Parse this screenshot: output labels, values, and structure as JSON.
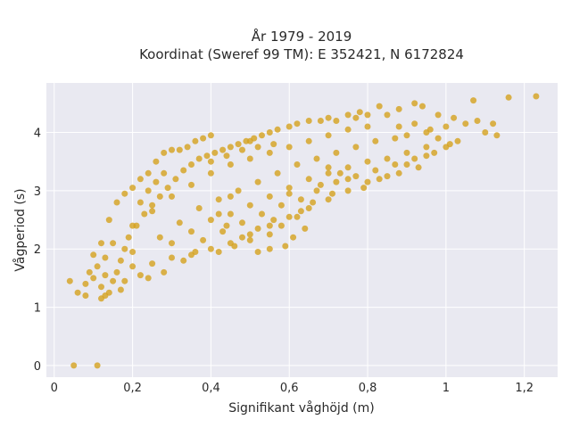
{
  "chart_data": {
    "type": "scatter",
    "title_line1": "År 1979 - 2019",
    "title_line2": "Koordinat (Sweref 99 TM): E 352421, N 6172824",
    "xlabel": "Signifikant våghöjd (m)",
    "ylabel": "Vågperiod (s)",
    "xlim": [
      -0.02,
      1.285
    ],
    "ylim": [
      -0.2,
      4.85
    ],
    "x_ticks": [
      0,
      0.2,
      0.4,
      0.6,
      0.8,
      1,
      1.2
    ],
    "x_tick_labels": [
      "0",
      "0,2",
      "0,4",
      "0,6",
      "0,8",
      "1",
      "1,2"
    ],
    "y_ticks": [
      0,
      1,
      2,
      3,
      4
    ],
    "y_tick_labels": [
      "0",
      "1",
      "2",
      "3",
      "4"
    ],
    "grid": true,
    "marker_color": "#D4A11E",
    "plot_background": "#E9E9F1",
    "grid_color": "#FFFFFF",
    "points": [
      [
        0.05,
        0.0
      ],
      [
        0.11,
        0.0
      ],
      [
        0.04,
        1.45
      ],
      [
        0.06,
        1.25
      ],
      [
        0.08,
        1.2
      ],
      [
        0.12,
        1.15
      ],
      [
        0.13,
        1.55
      ],
      [
        0.1,
        1.9
      ],
      [
        0.12,
        2.1
      ],
      [
        0.14,
        2.5
      ],
      [
        0.16,
        2.8
      ],
      [
        0.18,
        2.95
      ],
      [
        0.2,
        3.05
      ],
      [
        0.22,
        3.2
      ],
      [
        0.24,
        3.3
      ],
      [
        0.26,
        3.5
      ],
      [
        0.28,
        3.65
      ],
      [
        0.3,
        3.7
      ],
      [
        0.32,
        3.7
      ],
      [
        0.34,
        3.75
      ],
      [
        0.36,
        3.85
      ],
      [
        0.38,
        3.9
      ],
      [
        0.4,
        3.95
      ],
      [
        0.5,
        3.85
      ],
      [
        0.55,
        4.0
      ],
      [
        0.6,
        4.1
      ],
      [
        0.65,
        4.2
      ],
      [
        0.7,
        4.25
      ],
      [
        0.75,
        4.3
      ],
      [
        0.78,
        4.35
      ],
      [
        0.8,
        4.3
      ],
      [
        0.83,
        4.45
      ],
      [
        0.88,
        4.4
      ],
      [
        0.92,
        4.5
      ],
      [
        0.94,
        4.45
      ],
      [
        0.98,
        4.3
      ],
      [
        1.0,
        4.1
      ],
      [
        1.02,
        4.25
      ],
      [
        1.05,
        4.15
      ],
      [
        1.08,
        4.2
      ],
      [
        1.1,
        4.0
      ],
      [
        1.12,
        4.15
      ],
      [
        1.13,
        3.95
      ],
      [
        1.16,
        4.6
      ],
      [
        1.23,
        4.62
      ],
      [
        1.07,
        4.55
      ],
      [
        0.95,
        4.0
      ],
      [
        0.9,
        3.95
      ],
      [
        0.2,
        1.7
      ],
      [
        0.25,
        1.75
      ],
      [
        0.3,
        1.85
      ],
      [
        0.35,
        1.9
      ],
      [
        0.4,
        2.0
      ],
      [
        0.45,
        2.1
      ],
      [
        0.5,
        2.25
      ],
      [
        0.55,
        2.4
      ],
      [
        0.6,
        2.55
      ],
      [
        0.65,
        2.7
      ],
      [
        0.7,
        2.85
      ],
      [
        0.75,
        3.0
      ],
      [
        0.8,
        3.15
      ],
      [
        0.85,
        3.25
      ],
      [
        0.9,
        3.45
      ],
      [
        0.95,
        3.6
      ],
      [
        1.0,
        3.75
      ],
      [
        0.52,
        1.95
      ],
      [
        0.5,
        2.15
      ],
      [
        0.55,
        2.25
      ],
      [
        0.58,
        2.4
      ],
      [
        0.62,
        2.55
      ],
      [
        0.6,
        2.95
      ],
      [
        0.68,
        3.1
      ],
      [
        0.7,
        3.4
      ],
      [
        0.73,
        3.3
      ],
      [
        0.75,
        3.2
      ],
      [
        0.42,
        2.6
      ],
      [
        0.45,
        2.9
      ],
      [
        0.08,
        1.4
      ],
      [
        0.09,
        1.6
      ],
      [
        0.1,
        1.5
      ],
      [
        0.11,
        1.7
      ],
      [
        0.12,
        1.35
      ],
      [
        0.14,
        1.25
      ],
      [
        0.15,
        1.45
      ],
      [
        0.16,
        1.6
      ],
      [
        0.17,
        1.8
      ],
      [
        0.18,
        2.0
      ],
      [
        0.19,
        2.2
      ],
      [
        0.21,
        2.4
      ],
      [
        0.23,
        2.6
      ],
      [
        0.25,
        2.75
      ],
      [
        0.27,
        2.9
      ],
      [
        0.29,
        3.05
      ],
      [
        0.31,
        3.2
      ],
      [
        0.33,
        3.35
      ],
      [
        0.35,
        3.45
      ],
      [
        0.37,
        3.55
      ],
      [
        0.39,
        3.6
      ],
      [
        0.41,
        3.65
      ],
      [
        0.43,
        3.7
      ],
      [
        0.45,
        3.75
      ],
      [
        0.47,
        3.8
      ],
      [
        0.49,
        3.85
      ],
      [
        0.51,
        3.9
      ],
      [
        0.53,
        3.95
      ],
      [
        0.57,
        4.05
      ],
      [
        0.62,
        4.15
      ],
      [
        0.68,
        4.2
      ],
      [
        0.72,
        4.2
      ],
      [
        0.77,
        4.25
      ],
      [
        0.85,
        4.3
      ],
      [
        0.88,
        4.1
      ],
      [
        0.92,
        4.15
      ],
      [
        0.96,
        4.05
      ],
      [
        0.98,
        3.9
      ],
      [
        0.65,
        3.85
      ],
      [
        0.7,
        3.95
      ],
      [
        0.75,
        4.05
      ],
      [
        0.8,
        4.1
      ],
      [
        0.6,
        3.75
      ],
      [
        0.55,
        3.65
      ],
      [
        0.5,
        3.55
      ],
      [
        0.45,
        3.45
      ],
      [
        0.4,
        3.3
      ],
      [
        0.35,
        3.1
      ],
      [
        0.3,
        2.9
      ],
      [
        0.25,
        2.65
      ],
      [
        0.2,
        2.4
      ],
      [
        0.15,
        2.1
      ],
      [
        0.13,
        1.85
      ],
      [
        0.3,
        2.1
      ],
      [
        0.35,
        2.3
      ],
      [
        0.4,
        2.5
      ],
      [
        0.45,
        2.6
      ],
      [
        0.5,
        2.75
      ],
      [
        0.55,
        2.9
      ],
      [
        0.6,
        3.05
      ],
      [
        0.65,
        3.2
      ],
      [
        0.7,
        3.3
      ],
      [
        0.75,
        3.4
      ],
      [
        0.8,
        3.5
      ],
      [
        0.85,
        3.55
      ],
      [
        0.9,
        3.65
      ],
      [
        0.95,
        3.75
      ],
      [
        0.36,
        1.95
      ],
      [
        0.28,
        1.6
      ],
      [
        0.22,
        1.55
      ],
      [
        0.18,
        1.45
      ],
      [
        0.24,
        1.5
      ],
      [
        0.33,
        1.8
      ],
      [
        0.38,
        2.15
      ],
      [
        0.43,
        2.3
      ],
      [
        0.48,
        2.45
      ],
      [
        0.53,
        2.6
      ],
      [
        0.58,
        2.75
      ],
      [
        0.63,
        2.85
      ],
      [
        0.67,
        3.0
      ],
      [
        0.72,
        3.15
      ],
      [
        0.77,
        3.25
      ],
      [
        0.82,
        3.35
      ],
      [
        0.87,
        3.45
      ],
      [
        0.92,
        3.55
      ],
      [
        0.97,
        3.65
      ],
      [
        1.01,
        3.8
      ],
      [
        1.03,
        3.85
      ],
      [
        0.27,
        2.2
      ],
      [
        0.32,
        2.45
      ],
      [
        0.37,
        2.7
      ],
      [
        0.42,
        2.85
      ],
      [
        0.47,
        3.0
      ],
      [
        0.52,
        3.15
      ],
      [
        0.57,
        3.3
      ],
      [
        0.62,
        3.45
      ],
      [
        0.67,
        3.55
      ],
      [
        0.72,
        3.65
      ],
      [
        0.77,
        3.75
      ],
      [
        0.82,
        3.85
      ],
      [
        0.87,
        3.9
      ],
      [
        0.2,
        1.95
      ],
      [
        0.17,
        1.3
      ],
      [
        0.13,
        1.2
      ],
      [
        0.22,
        2.8
      ],
      [
        0.24,
        3.0
      ],
      [
        0.26,
        3.15
      ],
      [
        0.28,
        3.3
      ],
      [
        0.4,
        3.5
      ],
      [
        0.44,
        3.6
      ],
      [
        0.48,
        3.7
      ],
      [
        0.52,
        3.75
      ],
      [
        0.56,
        3.8
      ],
      [
        0.46,
        2.05
      ],
      [
        0.42,
        1.95
      ],
      [
        0.48,
        2.2
      ],
      [
        0.44,
        2.4
      ],
      [
        0.52,
        2.35
      ],
      [
        0.56,
        2.5
      ],
      [
        0.63,
        2.65
      ],
      [
        0.66,
        2.8
      ],
      [
        0.71,
        2.95
      ],
      [
        0.79,
        3.05
      ],
      [
        0.83,
        3.2
      ],
      [
        0.88,
        3.3
      ],
      [
        0.93,
        3.4
      ],
      [
        0.59,
        2.05
      ],
      [
        0.55,
        2.0
      ],
      [
        0.61,
        2.2
      ],
      [
        0.64,
        2.35
      ]
    ]
  }
}
